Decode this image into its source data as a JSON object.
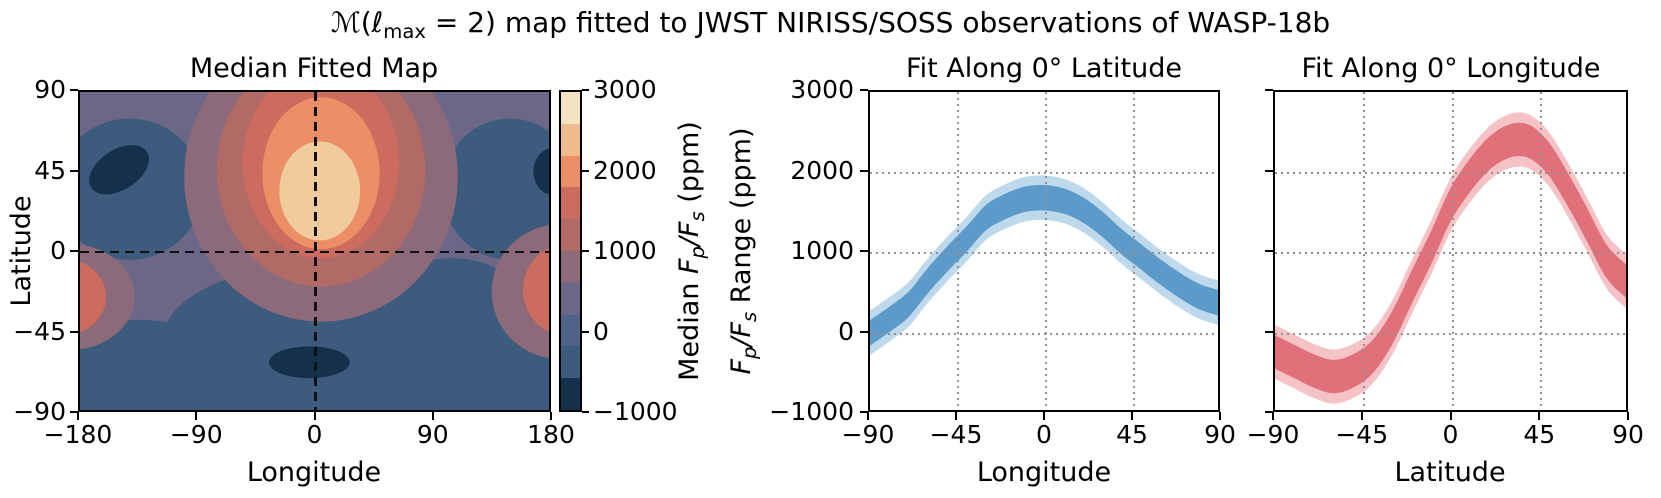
{
  "suptitle": {
    "pre": "ℳ(ℓ",
    "sub": "max",
    "post": " = 2) map fitted to JWST NIRISS/SOSS observations of WASP-18b"
  },
  "colors": {
    "navy": "#15304a",
    "blue": "#3d5b7c",
    "blue_slate": "#4f6287",
    "slate": "#6c6786",
    "mauve": "#8d6a79",
    "red_mauve": "#b26a67",
    "red": "#cc6c5f",
    "salmon": "#ec8f66",
    "tan": "#eebc8c",
    "cream": "#f3e3c3",
    "map_core": "#efcb9d",
    "band_blue_inner": "#5b9ac9",
    "band_blue_outer": "#bed9ec",
    "band_red_inner": "#e0707a",
    "band_red_outer": "#f5c3c6",
    "grid": "#909090",
    "dash": "#101010"
  },
  "map_panel": {
    "title": "Median Fitted Map",
    "xlabel": "Longitude",
    "ylabel": "Latitude",
    "xticks": [
      "−180",
      "−90",
      "0",
      "90",
      "180"
    ],
    "yticks": [
      "90",
      "45",
      "0",
      "−45",
      "−90"
    ]
  },
  "colorbar": {
    "ticks": [
      "3000",
      "2000",
      "1000",
      "0",
      "−1000"
    ],
    "label": {
      "pre": "Median ",
      "f1": "F",
      "s1": "p",
      "mid": "/",
      "f2": "F",
      "s2": "s",
      "post": " (ppm)"
    }
  },
  "middle_panel": {
    "title": "Fit Along 0° Latitude",
    "xlabel": "Longitude",
    "ylabel": {
      "f1": "F",
      "s1": "p",
      "mid": "/",
      "f2": "F",
      "s2": "s",
      "post": " Range (ppm)"
    },
    "xticks": [
      "−90",
      "−45",
      "0",
      "45",
      "90"
    ],
    "yticks": [
      "3000",
      "2000",
      "1000",
      "0",
      "−1000"
    ]
  },
  "right_panel": {
    "title": "Fit Along 0° Longitude",
    "xlabel": "Latitude",
    "xticks": [
      "−90",
      "−45",
      "0",
      "45",
      "90"
    ]
  },
  "chart_data": [
    {
      "type": "heatmap",
      "title": "Median Fitted Map",
      "xlabel": "Longitude",
      "ylabel": "Latitude",
      "xlim": [
        -180,
        180
      ],
      "ylim": [
        -90,
        90
      ],
      "colorbar_label": "Median Fp/Fs (ppm)",
      "colorbar_range": [
        -1000,
        3000
      ],
      "levels": [
        -1000,
        -600,
        -200,
        200,
        600,
        1000,
        1400,
        1800,
        2200,
        2600,
        3000
      ],
      "level_colors": [
        "#15304a",
        "#3d5b7c",
        "#4f6287",
        "#6c6786",
        "#8d6a79",
        "#b26a67",
        "#cc6c5f",
        "#ec8f66",
        "#eebc8c",
        "#f3e3c3"
      ],
      "features": {
        "hotspot": {
          "lon": 5,
          "lat": 30,
          "peak_ppm": 2500
        },
        "cold_spots": [
          {
            "lon": -150,
            "lat": 46,
            "ppm": -800
          },
          {
            "lon": 180,
            "lat": 45,
            "ppm": -800
          },
          {
            "lon": -3,
            "lat": -63,
            "ppm": -800
          }
        ],
        "warm_edge_blobs": [
          {
            "lon": -180,
            "lat": -26,
            "ppm": 1200
          },
          {
            "lon": 180,
            "lat": -24,
            "ppm": 1200
          }
        ],
        "crosshair_dashed_lines": {
          "lon": 0,
          "lat": 0
        }
      }
    },
    {
      "type": "area",
      "title": "Fit Along 0° Latitude",
      "xlabel": "Longitude",
      "ylabel": "Fp/Fs Range (ppm)",
      "xlim": [
        -90,
        90
      ],
      "ylim": [
        -1000,
        3000
      ],
      "grid": true,
      "x": [
        -90,
        -80,
        -70,
        -60,
        -50,
        -40,
        -30,
        -20,
        -10,
        0,
        10,
        20,
        30,
        40,
        50,
        60,
        70,
        80,
        90
      ],
      "median": [
        -30,
        140,
        330,
        630,
        900,
        1150,
        1420,
        1560,
        1650,
        1670,
        1630,
        1520,
        1340,
        1120,
        930,
        740,
        570,
        430,
        350
      ],
      "inner_halfwidth_ppm": 160,
      "outer_halfwidth_ppm": 280,
      "inner_color": "#5b9ac9",
      "outer_color": "#bed9ec"
    },
    {
      "type": "area",
      "title": "Fit Along 0° Longitude",
      "xlabel": "Latitude",
      "ylabel": "Fp/Fs Range (ppm)",
      "xlim": [
        -90,
        90
      ],
      "ylim": [
        -1000,
        3000
      ],
      "grid": true,
      "x": [
        -90,
        -80,
        -70,
        -60,
        -50,
        -40,
        -30,
        -20,
        -10,
        0,
        10,
        20,
        30,
        40,
        50,
        60,
        70,
        80,
        90
      ],
      "median": [
        -270,
        -390,
        -510,
        -580,
        -510,
        -330,
        30,
        540,
        1040,
        1580,
        1950,
        2230,
        2380,
        2380,
        2170,
        1780,
        1330,
        870,
        620
      ],
      "inner_halfwidth_ppm": 210,
      "outer_halfwidth_ppm": 340,
      "inner_color": "#e0707a",
      "outer_color": "#f5c3c6"
    }
  ]
}
